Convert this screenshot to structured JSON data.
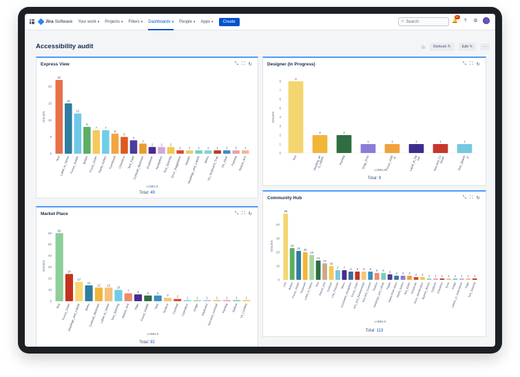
{
  "topbar": {
    "app_name_brand": "Jira",
    "app_name_product": "Software",
    "nav": [
      {
        "label": "Your work"
      },
      {
        "label": "Projects"
      },
      {
        "label": "Filters"
      },
      {
        "label": "Dashboards",
        "active": true
      },
      {
        "label": "People"
      },
      {
        "label": "Apps"
      }
    ],
    "create_label": "Create",
    "search_placeholder": "Search",
    "notification_count": "9+"
  },
  "page": {
    "title": "Accessibility audit",
    "refresh_label": "Refresh",
    "edit_label": "Edit",
    "more_label": "···"
  },
  "colors": {
    "accent": "#0052cc",
    "gadget_top_border": "#4c9aff",
    "palette": [
      "#e8704b",
      "#2d7ea0",
      "#70c8e8",
      "#5bae63",
      "#f4c95d",
      "#6fcde8",
      "#f2a541",
      "#dd5a1f",
      "#4d3a9b",
      "#ec9b2d",
      "#4a2c8f",
      "#cfa8e0",
      "#f2c94c",
      "#e8b93a",
      "#d94a2b",
      "#77cfc3",
      "#f3c776",
      "#8ad0cf",
      "#c0392b",
      "#3b8ec2",
      "#e7a1b0",
      "#f5b78e"
    ]
  },
  "gadgets": [
    {
      "id": "express",
      "title": "Express View",
      "total_label": "Total:",
      "total_value": "49",
      "chart_data": {
        "type": "bar",
        "ylabel": "ISSUES",
        "xlabel": "LABELS",
        "ylim": [
          0,
          22
        ],
        "yticks": [
          0,
          5,
          10,
          15,
          20
        ],
        "categories": [
          "Text",
          "Label_in_Name",
          "Focus_Visible",
          "Button",
          "Focus_Order",
          "Radio_button",
          "Functional",
          "Checkbox",
          "Text_Field",
          "Contrast_Minimum",
          "Dropdown",
          "Navigation",
          "Text_Spacing",
          "Error_Suggestion",
          "Header",
          "Headings_and_Labels",
          "Menu",
          "No_Keyboard_Trap",
          "On_Input",
          "Parsing",
          "Resize_text"
        ],
        "values": [
          22,
          15,
          12,
          8,
          7,
          7,
          6,
          5,
          4,
          3,
          2,
          2,
          2,
          1,
          1,
          1,
          1,
          1,
          1,
          1,
          1
        ],
        "colors": [
          "#e8704b",
          "#2d7ea0",
          "#70c8e8",
          "#5bae63",
          "#f4c95d",
          "#6fcde8",
          "#f2a541",
          "#dd5a1f",
          "#4d3a9b",
          "#ec9b2d",
          "#4a2c8f",
          "#cfa8e0",
          "#f2c94c",
          "#d94a2b",
          "#f3c776",
          "#77cfc3",
          "#8ad0cf",
          "#c0392b",
          "#3b8ec2",
          "#e7a1b0",
          "#f5b78e"
        ]
      }
    },
    {
      "id": "designer",
      "title": "Designer (In Progress)",
      "total_label": "Total:",
      "total_value": "9",
      "chart_data": {
        "type": "bar",
        "ylabel": "ISSUES",
        "xlabel": "LABELS",
        "ylim": [
          0,
          8
        ],
        "yticks": [
          0,
          1,
          2,
          3,
          4,
          5,
          6,
          7,
          8
        ],
        "categories": [
          "Text",
          "Heading_and_Labels",
          "Parsing",
          "Drag_Drop",
          "Focus_Visible",
          "Label_in_Name",
          "Non-text_Contrast",
          "Text_Spacing"
        ],
        "tick_labels": [
          [
            "Text"
          ],
          [
            "Heading_an",
            "d_Labels"
          ],
          [
            "Parsing"
          ],
          [
            "Drag_Drop"
          ],
          [
            "Focus_Visib",
            "le"
          ],
          [
            "Label_in_Na",
            "me"
          ],
          [
            "Non-text_Co",
            "ntrast"
          ],
          [
            "Text_Spacin",
            "g"
          ]
        ],
        "values": [
          8,
          2,
          2,
          1,
          1,
          1,
          1,
          1
        ],
        "colors": [
          "#f4d670",
          "#f2b53a",
          "#2f6e42",
          "#8e7cd8",
          "#f0a33a",
          "#3e2c8f",
          "#c7362b",
          "#76c7e0"
        ]
      }
    },
    {
      "id": "market",
      "title": "Market Place",
      "total_label": "Total:",
      "total_value": "92",
      "chart_data": {
        "type": "bar",
        "ylabel": "ISSUES",
        "xlabel": "LABELS",
        "ylim": [
          0,
          62
        ],
        "yticks": [
          0,
          10,
          20,
          30,
          40,
          50,
          60
        ],
        "categories": [
          "Text",
          "Focus_Order",
          "Headings_and_Labels",
          "Menu",
          "Contrast_Minimum",
          "Label_in_Name",
          "Text_Spacing",
          "Resize_text",
          "Filter",
          "Focus_Visible",
          "Tiles",
          "Textbox",
          "Contrast",
          "Checkbox",
          "Image",
          "Keyboard",
          "Non-text_contrast",
          "Parsing",
          "Reflow",
          "UI_Content"
        ],
        "values": [
          60,
          24,
          17,
          14,
          12,
          12,
          10,
          7,
          6,
          5,
          5,
          3,
          2,
          1,
          1,
          1,
          1,
          1,
          1,
          1
        ],
        "colors": [
          "#8ccf9a",
          "#c4321f",
          "#f7d774",
          "#2d7ea0",
          "#f2b53a",
          "#f4c07a",
          "#6fcde8",
          "#f08b6b",
          "#4a2c8f",
          "#2f6e42",
          "#3b8ec2",
          "#f3c776",
          "#d94a2b",
          "#8ad0cf",
          "#a7d6a0",
          "#c9b5e6",
          "#f5b78e",
          "#e7a1b0",
          "#77cfc3",
          "#f2c94c"
        ]
      }
    },
    {
      "id": "community",
      "title": "Community Hub",
      "total_label": "Total:",
      "total_value": "113",
      "chart_data": {
        "type": "bar",
        "ylabel": "ISSUES",
        "xlabel": "LABELS",
        "ylim": [
          0,
          49
        ],
        "yticks": [
          0,
          10,
          20,
          30,
          40
        ],
        "categories": [
          "Link",
          "Button",
          "Focus_Visible",
          "Keyboard",
          "Label_in_Name",
          "Text",
          "Resize_text",
          "Contrast",
          "Link_Purpose",
          "Menu",
          "Consistent_Navigation",
          "Focus_Order",
          "Info_and_Relationships",
          "Non-text_Content",
          "Textbox",
          "Headings_and_Labels",
          "Pages",
          "Name-Role-Value",
          "Radio_button",
          "Text_Editor",
          "Dropdown",
          "Error_Identification",
          "Bypass_Blocks",
          "Captions",
          "Checkbox",
          "Error",
          "Image",
          "Labels_or_Instructions",
          "Page",
          "Text_Spacing"
        ],
        "values": [
          48,
          23,
          21,
          20,
          18,
          14,
          12,
          10,
          7,
          7,
          6,
          6,
          6,
          6,
          5,
          5,
          4,
          3,
          3,
          3,
          2,
          2,
          1,
          1,
          1,
          1,
          1,
          1,
          1,
          1
        ],
        "colors": [
          "#f4d670",
          "#5bae63",
          "#2d7ea0",
          "#f2b53a",
          "#a7d6a0",
          "#2f6e42",
          "#c9a98a",
          "#f4c95d",
          "#76c7e0",
          "#4a2c8f",
          "#3e6b9b",
          "#c4321f",
          "#f3c776",
          "#3b8ec2",
          "#f08b6b",
          "#77cfc3",
          "#4d3a9b",
          "#2d7ea0",
          "#8e7cd8",
          "#f0a33a",
          "#d94a2b",
          "#f2c94c",
          "#8ad0cf",
          "#e7a1b0",
          "#c0392b",
          "#f5b78e",
          "#6fcde8",
          "#cfa8e0",
          "#f4c07a",
          "#c7362b"
        ]
      }
    }
  ]
}
